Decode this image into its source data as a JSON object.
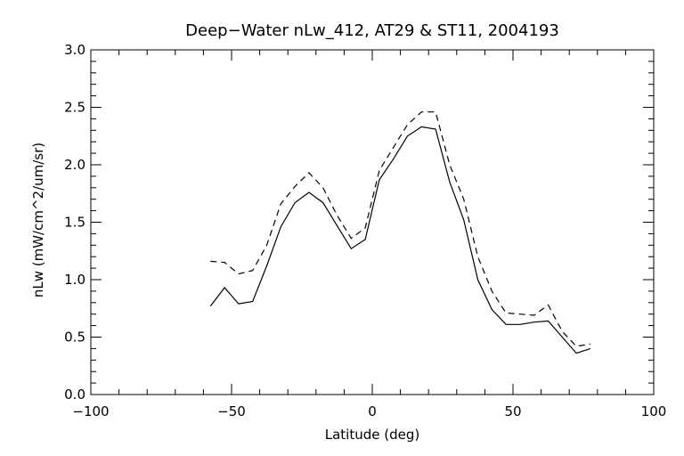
{
  "chart_data": {
    "type": "line",
    "title": "Deep−Water nLw_412, AT29 & ST11, 2004193",
    "xlabel": "Latitude (deg)",
    "ylabel": "nLw (mW/cm^2/um/sr)",
    "xlim": [
      -100,
      100
    ],
    "ylim": [
      0.0,
      3.0
    ],
    "xticks": [
      -100,
      -50,
      0,
      50,
      100
    ],
    "xtick_labels": [
      "−100",
      "−50",
      "0",
      "50",
      "100"
    ],
    "yticks": [
      0.0,
      0.5,
      1.0,
      1.5,
      2.0,
      2.5,
      3.0
    ],
    "ytick_labels": [
      "0.0",
      "0.5",
      "1.0",
      "1.5",
      "2.0",
      "2.5",
      "3.0"
    ],
    "grid": false,
    "series": [
      {
        "style": "solid",
        "color": "#000000",
        "x": [
          -57.5,
          -52.5,
          -47.5,
          -42.5,
          -37.5,
          -32.5,
          -27.5,
          -22.5,
          -17.5,
          -12.5,
          -7.5,
          -2.5,
          2.5,
          7.5,
          12.5,
          17.5,
          22.5,
          27.5,
          32.5,
          37.5,
          42.5,
          47.5,
          52.5,
          57.5,
          62.5,
          67.5,
          72.5,
          77.5
        ],
        "y": [
          0.77,
          0.93,
          0.79,
          0.81,
          1.12,
          1.46,
          1.67,
          1.76,
          1.67,
          1.47,
          1.27,
          1.35,
          1.87,
          2.05,
          2.25,
          2.33,
          2.31,
          1.85,
          1.52,
          1.0,
          0.74,
          0.61,
          0.61,
          0.63,
          0.64,
          0.5,
          0.36,
          0.4
        ]
      },
      {
        "style": "dashed",
        "color": "#000000",
        "x": [
          -57.5,
          -52.5,
          -47.5,
          -42.5,
          -37.5,
          -32.5,
          -27.5,
          -22.5,
          -17.5,
          -12.5,
          -7.5,
          -2.5,
          2.5,
          7.5,
          12.5,
          17.5,
          22.5,
          27.5,
          32.5,
          37.5,
          42.5,
          47.5,
          52.5,
          57.5,
          62.5,
          67.5,
          72.5,
          77.5
        ],
        "y": [
          1.16,
          1.15,
          1.05,
          1.08,
          1.3,
          1.66,
          1.81,
          1.93,
          1.8,
          1.56,
          1.36,
          1.45,
          1.95,
          2.15,
          2.35,
          2.46,
          2.46,
          2.0,
          1.7,
          1.2,
          0.9,
          0.71,
          0.7,
          0.69,
          0.78,
          0.55,
          0.42,
          0.44
        ]
      }
    ]
  }
}
